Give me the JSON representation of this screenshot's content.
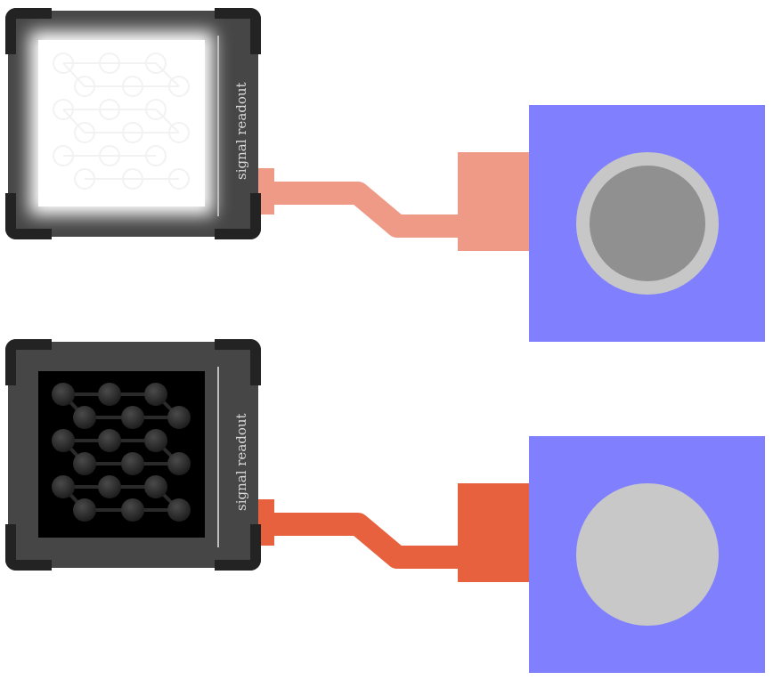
{
  "scene": {
    "colors": {
      "background": "#ffffff",
      "panel": "#464646",
      "panel_corner": "#232323",
      "switch_plate": "#8080ff"
    }
  },
  "panels": [
    {
      "label": "signal readout",
      "screen_state": "lit",
      "cable_color": "#ee9a86",
      "switch_state": "off"
    },
    {
      "label": "signal readout",
      "screen_state": "dark",
      "cable_color": "#e8613e",
      "switch_state": "on"
    }
  ]
}
